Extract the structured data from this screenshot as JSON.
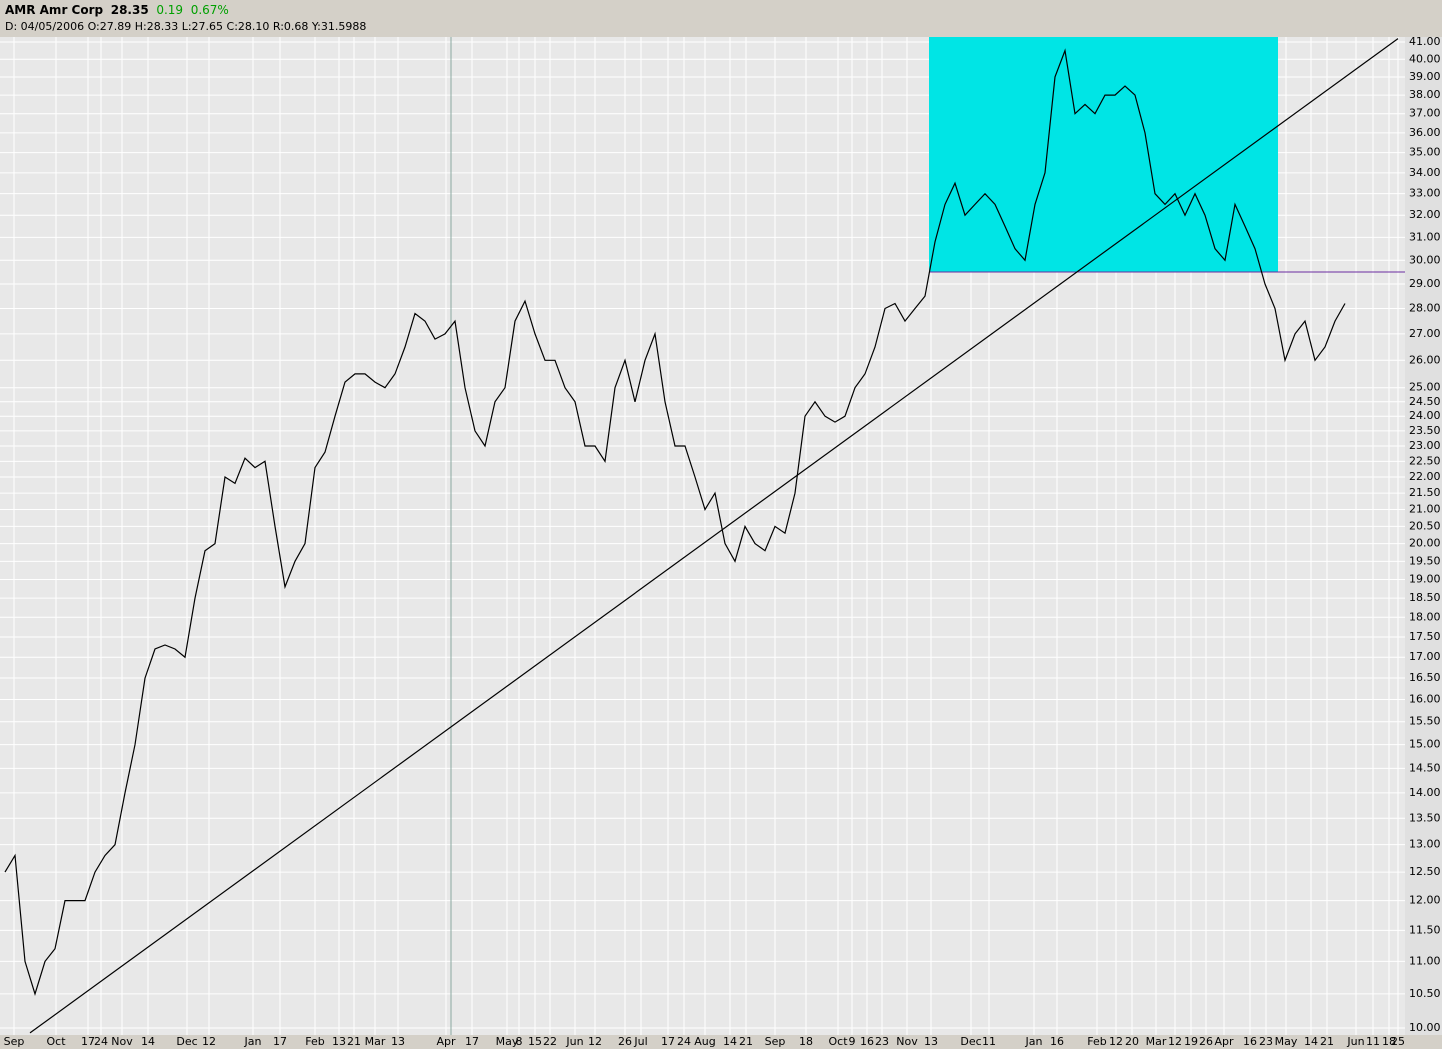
{
  "header": {
    "symbol": "AMR Amr Corp",
    "last": "28.35",
    "change": "0.19",
    "change_pct": "0.67%",
    "info": "D: 04/05/2006 O:27.89 H:28.33 L:27.65 C:28.10 R:0.68 Y:31.5988"
  },
  "chart_data": {
    "type": "line",
    "color": "#000000",
    "log_scale": true,
    "grid": true,
    "values": [
      12.5,
      12.8,
      11,
      10.5,
      11,
      11.2,
      12,
      12,
      12,
      12.5,
      12.8,
      13,
      14,
      15,
      16.5,
      17.2,
      17.3,
      17.2,
      17,
      18.5,
      19.8,
      20,
      22,
      21.8,
      22.6,
      22.3,
      22.5,
      20.5,
      18.8,
      19.5,
      20,
      22.3,
      22.8,
      24,
      25.2,
      25.5,
      25.5,
      25.2,
      25,
      25.5,
      26.5,
      27.8,
      27.5,
      26.8,
      27,
      27.5,
      25,
      23.5,
      23,
      24.5,
      25,
      27.5,
      28.3,
      27,
      26,
      26,
      25,
      24.5,
      23,
      23,
      22.5,
      25,
      26,
      24.5,
      26,
      27,
      24.5,
      23,
      23,
      22,
      21,
      21.5,
      20,
      19.5,
      20.5,
      20,
      19.8,
      20.5,
      20.3,
      21.5,
      24,
      24.5,
      24,
      23.8,
      24,
      25,
      25.5,
      26.5,
      28,
      28.2,
      27.5,
      28,
      28.5,
      30.8,
      32.5,
      33.5,
      32,
      32.5,
      33,
      32.5,
      31.5,
      30.5,
      30,
      32.5,
      34,
      39,
      40.5,
      37,
      37.5,
      37,
      38,
      38,
      38.5,
      38,
      36,
      33,
      32.5,
      33,
      32,
      33,
      32,
      30.5,
      30,
      32.5,
      31.5,
      30.5,
      29,
      28,
      26,
      27,
      27.5,
      26,
      26.5,
      27.5,
      28.2
    ],
    "xlim": [
      -0.5,
      139.5
    ],
    "ylim": [
      10,
      41
    ],
    "xticks": [
      {
        "value": 0.9,
        "label": "Sep"
      },
      {
        "value": 5.1,
        "label": "Oct"
      },
      {
        "value": 8.3,
        "label": "17"
      },
      {
        "value": 9.6,
        "label": "24"
      },
      {
        "value": 11.7,
        "label": "Nov"
      },
      {
        "value": 14.3,
        "label": "14"
      },
      {
        "value": 18.2,
        "label": "Dec"
      },
      {
        "value": 20.4,
        "label": "12"
      },
      {
        "value": 24.8,
        "label": "Jan"
      },
      {
        "value": 27.5,
        "label": "17"
      },
      {
        "value": 31,
        "label": "Feb"
      },
      {
        "value": 33.4,
        "label": "13"
      },
      {
        "value": 34.9,
        "label": "21"
      },
      {
        "value": 37,
        "label": "Mar"
      },
      {
        "value": 39.3,
        "label": "13"
      },
      {
        "value": 44.1,
        "label": "Apr"
      },
      {
        "value": 46.7,
        "label": "17"
      },
      {
        "value": 50.2,
        "label": "May"
      },
      {
        "value": 51.4,
        "label": "8"
      },
      {
        "value": 53,
        "label": "15"
      },
      {
        "value": 54.5,
        "label": "22"
      },
      {
        "value": 57,
        "label": "Jun"
      },
      {
        "value": 59,
        "label": "12"
      },
      {
        "value": 62,
        "label": "26"
      },
      {
        "value": 63.6,
        "label": "Jul"
      },
      {
        "value": 66.3,
        "label": "17"
      },
      {
        "value": 67.9,
        "label": "24"
      },
      {
        "value": 70,
        "label": "Aug"
      },
      {
        "value": 72.5,
        "label": "14"
      },
      {
        "value": 74.1,
        "label": "21"
      },
      {
        "value": 77,
        "label": "Sep"
      },
      {
        "value": 80.1,
        "label": "18"
      },
      {
        "value": 83.3,
        "label": "Oct"
      },
      {
        "value": 84.7,
        "label": "9"
      },
      {
        "value": 86.2,
        "label": "16"
      },
      {
        "value": 87.7,
        "label": "23"
      },
      {
        "value": 90.2,
        "label": "Nov"
      },
      {
        "value": 92.6,
        "label": "13"
      },
      {
        "value": 96.6,
        "label": "Dec"
      },
      {
        "value": 98.4,
        "label": "11"
      },
      {
        "value": 102.9,
        "label": "Jan"
      },
      {
        "value": 105.2,
        "label": "16"
      },
      {
        "value": 109.2,
        "label": "Feb"
      },
      {
        "value": 111.1,
        "label": "12"
      },
      {
        "value": 112.7,
        "label": "20"
      },
      {
        "value": 115.1,
        "label": "Mar"
      },
      {
        "value": 117,
        "label": "12"
      },
      {
        "value": 118.6,
        "label": "19"
      },
      {
        "value": 120.1,
        "label": "26"
      },
      {
        "value": 121.9,
        "label": "Apr"
      },
      {
        "value": 124.5,
        "label": "16"
      },
      {
        "value": 126.1,
        "label": "23"
      },
      {
        "value": 128.1,
        "label": "May"
      },
      {
        "value": 130.6,
        "label": "14"
      },
      {
        "value": 132.2,
        "label": "21"
      },
      {
        "value": 135.1,
        "label": "Jun"
      },
      {
        "value": 136.8,
        "label": "11"
      },
      {
        "value": 138.4,
        "label": "18"
      },
      {
        "value": 139.3,
        "label": "25"
      }
    ],
    "yticks": [
      {
        "value": 41,
        "label": "41.00"
      },
      {
        "value": 40,
        "label": "40.00"
      },
      {
        "value": 39,
        "label": "39.00"
      },
      {
        "value": 38,
        "label": "38.00"
      },
      {
        "value": 37,
        "label": "37.00"
      },
      {
        "value": 36,
        "label": "36.00"
      },
      {
        "value": 35,
        "label": "35.00"
      },
      {
        "value": 34,
        "label": "34.00"
      },
      {
        "value": 33,
        "label": "33.00"
      },
      {
        "value": 32,
        "label": "32.00"
      },
      {
        "value": 31,
        "label": "31.00"
      },
      {
        "value": 30,
        "label": "30.00"
      },
      {
        "value": 29,
        "label": "29.00"
      },
      {
        "value": 28,
        "label": "28.00"
      },
      {
        "value": 27,
        "label": "27.00"
      },
      {
        "value": 26,
        "label": "26.00"
      },
      {
        "value": 25,
        "label": "25.00"
      },
      {
        "value": 24.5,
        "label": "24.50"
      },
      {
        "value": 24,
        "label": "24.00"
      },
      {
        "value": 23.5,
        "label": "23.50"
      },
      {
        "value": 23,
        "label": "23.00"
      },
      {
        "value": 22.5,
        "label": "22.50"
      },
      {
        "value": 22,
        "label": "22.00"
      },
      {
        "value": 21.5,
        "label": "21.50"
      },
      {
        "value": 21,
        "label": "21.00"
      },
      {
        "value": 20.5,
        "label": "20.50"
      },
      {
        "value": 20,
        "label": "20.00"
      },
      {
        "value": 19.5,
        "label": "19.50"
      },
      {
        "value": 19,
        "label": "19.00"
      },
      {
        "value": 18.5,
        "label": "18.50"
      },
      {
        "value": 18,
        "label": "18.00"
      },
      {
        "value": 17.5,
        "label": "17.50"
      },
      {
        "value": 17,
        "label": "17.00"
      },
      {
        "value": 16.5,
        "label": "16.50"
      },
      {
        "value": 16,
        "label": "16.00"
      },
      {
        "value": 15.5,
        "label": "15.50"
      },
      {
        "value": 15,
        "label": "15.00"
      },
      {
        "value": 14.5,
        "label": "14.50"
      },
      {
        "value": 14,
        "label": "14.00"
      },
      {
        "value": 13.5,
        "label": "13.50"
      },
      {
        "value": 13,
        "label": "13.00"
      },
      {
        "value": 12.5,
        "label": "12.50"
      },
      {
        "value": 12,
        "label": "12.00"
      },
      {
        "value": 11.5,
        "label": "11.50"
      },
      {
        "value": 11,
        "label": "11.00"
      },
      {
        "value": 10.5,
        "label": "10.50"
      },
      {
        "value": 10,
        "label": "10.00"
      }
    ],
    "highlight_box": {
      "x": [
        92.4,
        127.3
      ],
      "y": [
        29.5,
        41.5
      ],
      "color": "#00e5e5"
    },
    "support_line": {
      "x": [
        92.4,
        140
      ],
      "y": 29.5,
      "color": "#6a2ca0"
    },
    "trendline": {
      "x": [
        2.5,
        139.3
      ],
      "y": [
        9.93,
        41.2
      ],
      "color": "#000000"
    },
    "cursor_line": {
      "x": 44.6,
      "color": "#8aa8a0"
    }
  }
}
